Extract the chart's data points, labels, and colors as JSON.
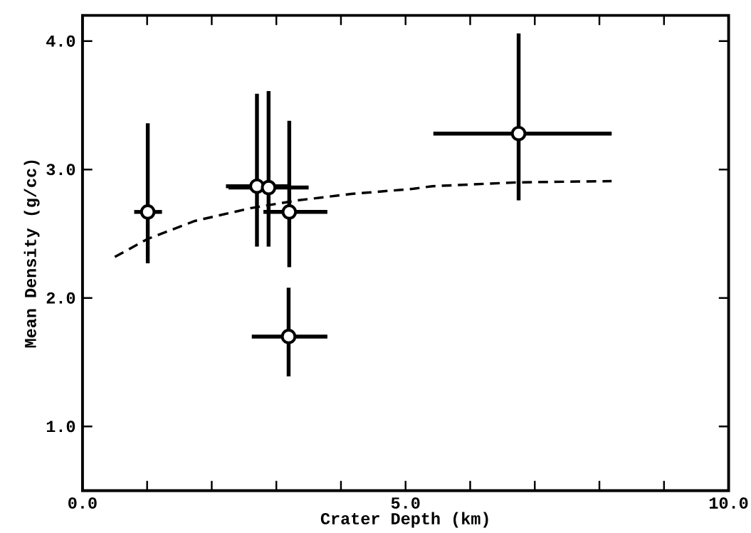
{
  "chart_data": {
    "type": "scatter",
    "xlabel": "Crater Depth (km)",
    "ylabel": "Mean Density (g/cc)",
    "xlim": [
      0,
      10
    ],
    "ylim": [
      0.5,
      4.2
    ],
    "xticks": [
      {
        "value": 0,
        "label": "0.0"
      },
      {
        "value": 1,
        "label": null
      },
      {
        "value": 2,
        "label": null
      },
      {
        "value": 3,
        "label": null
      },
      {
        "value": 4,
        "label": null
      },
      {
        "value": 5,
        "label": "5.0"
      },
      {
        "value": 6,
        "label": null
      },
      {
        "value": 7,
        "label": null
      },
      {
        "value": 8,
        "label": null
      },
      {
        "value": 9,
        "label": null
      },
      {
        "value": 10,
        "label": "10.0"
      }
    ],
    "yticks": [
      {
        "value": 1,
        "label": "1.0"
      },
      {
        "value": 2,
        "label": "2.0"
      },
      {
        "value": 3,
        "label": "3.0"
      },
      {
        "value": 4,
        "label": "4.0"
      }
    ],
    "grid": false,
    "legend": false,
    "series": [
      {
        "color": "#000000",
        "marker": "circle",
        "x": [
          1.01,
          2.7,
          2.88,
          3.2,
          3.19,
          6.75
        ],
        "values": [
          2.67,
          2.87,
          2.86,
          2.67,
          1.7,
          3.28
        ],
        "errors": [
          [
            2.27,
            3.36
          ],
          [
            2.4,
            3.59
          ],
          [
            2.4,
            3.61
          ],
          [
            2.24,
            3.38
          ],
          [
            1.39,
            2.08
          ],
          [
            2.76,
            4.06
          ]
        ],
        "xerrors": [
          [
            0.8,
            1.23
          ],
          [
            2.22,
            3.18
          ],
          [
            2.26,
            3.5
          ],
          [
            2.8,
            3.79
          ],
          [
            2.62,
            3.79
          ],
          [
            5.43,
            8.19
          ]
        ]
      },
      {
        "type": "line",
        "color": "#000000",
        "marker": "none",
        "line_style": "dashed",
        "x": [
          0.5,
          1.01,
          1.74,
          2.61,
          3.33,
          4.16,
          5.12,
          5.41,
          6.72,
          8.19
        ],
        "values": [
          2.32,
          2.46,
          2.6,
          2.7,
          2.76,
          2.81,
          2.85,
          2.87,
          2.9,
          2.91
        ]
      }
    ]
  }
}
